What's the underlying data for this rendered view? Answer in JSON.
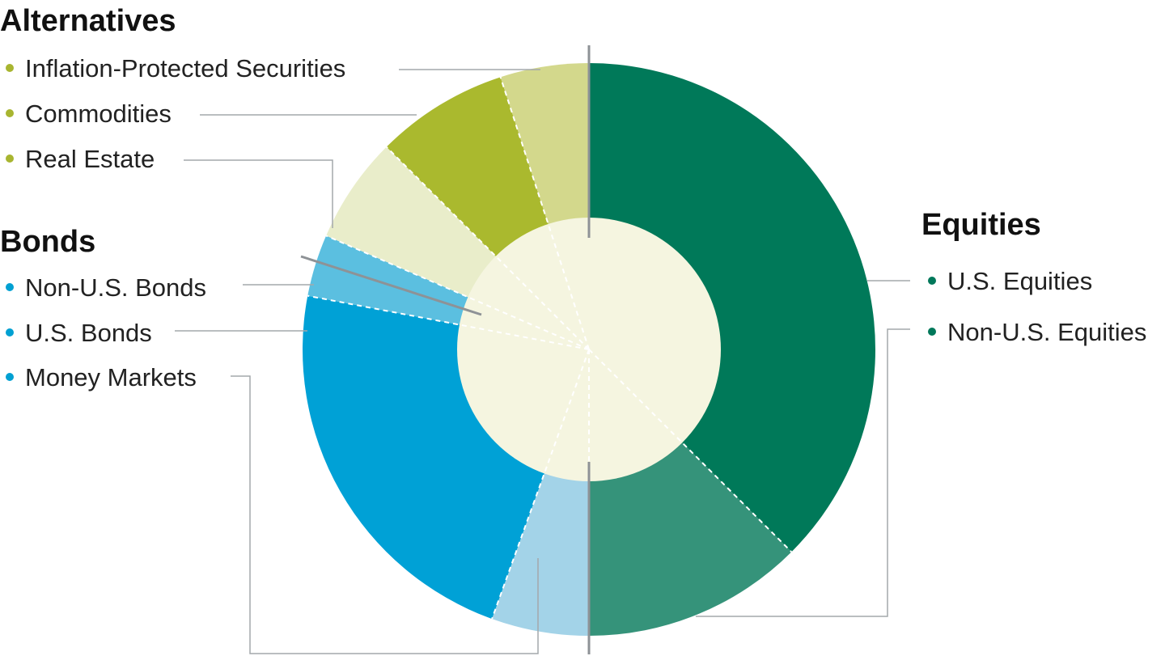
{
  "chart_data": {
    "type": "pie",
    "groups": [
      {
        "name": "Alternatives",
        "color": "#a8b530",
        "items": [
          "Inflation-Protected Securities",
          "Commodities",
          "Real Estate"
        ]
      },
      {
        "name": "Bonds",
        "color": "#00a0d2",
        "items": [
          "Non-U.S. Bonds",
          "U.S. Bonds",
          "Money Markets"
        ]
      },
      {
        "name": "Equities",
        "color": "#00785a",
        "items": [
          "U.S. Equities",
          "Non-U.S. Equities"
        ]
      }
    ],
    "slices": [
      {
        "label": "U.S. Equities",
        "value": 37.5,
        "color": "#007959"
      },
      {
        "label": "Non-U.S. Equities",
        "value": 12.5,
        "color": "#35937a"
      },
      {
        "label": "Money Markets",
        "value": 5.5,
        "color": "#a3d3e8"
      },
      {
        "label": "U.S. Bonds",
        "value": 22.5,
        "color": "#00a1d6"
      },
      {
        "label": "Non-U.S. Bonds",
        "value": 3.5,
        "color": "#5bbfe0"
      },
      {
        "label": "Real Estate",
        "value": 6.0,
        "color": "#e9edca"
      },
      {
        "label": "Commodities",
        "value": 7.5,
        "color": "#aab92e"
      },
      {
        "label": "Inflation-Protected Securities",
        "value": 5.0,
        "color": "#d3d88c"
      }
    ],
    "center_color": "#f5f5e0",
    "divider_color": "#8e9296"
  }
}
